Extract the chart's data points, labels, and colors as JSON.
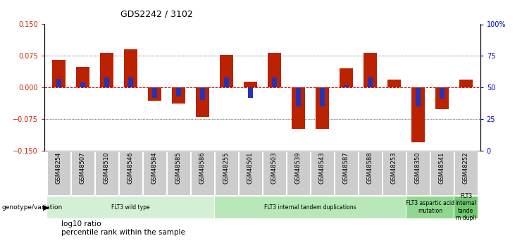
{
  "title": "GDS2242 / 3102",
  "samples": [
    "GSM48254",
    "GSM48507",
    "GSM48510",
    "GSM48546",
    "GSM48584",
    "GSM48585",
    "GSM48586",
    "GSM48255",
    "GSM48501",
    "GSM48503",
    "GSM48539",
    "GSM48543",
    "GSM48587",
    "GSM48588",
    "GSM48253",
    "GSM48350",
    "GSM48541",
    "GSM48252"
  ],
  "log10_ratio": [
    0.065,
    0.048,
    0.082,
    0.09,
    -0.032,
    -0.038,
    -0.07,
    0.078,
    0.014,
    0.082,
    -0.098,
    -0.098,
    0.045,
    0.082,
    0.018,
    -0.13,
    -0.052,
    0.018
  ],
  "percentile_rank": [
    57,
    54,
    58,
    58,
    42,
    43,
    40,
    58,
    42,
    58,
    35,
    35,
    52,
    58,
    50,
    35,
    41,
    50
  ],
  "groups": [
    {
      "label": "FLT3 wild type",
      "start": 0,
      "end": 7,
      "color": "#d4f0d4"
    },
    {
      "label": "FLT3 internal tandem duplications",
      "start": 7,
      "end": 15,
      "color": "#b8e8b8"
    },
    {
      "label": "FLT3 aspartic acid\nmutation",
      "start": 15,
      "end": 17,
      "color": "#90d890"
    },
    {
      "label": "FLT3\ninternal\ntande\nm dupli",
      "start": 17,
      "end": 18,
      "color": "#70c870"
    }
  ],
  "ylim": [
    -0.15,
    0.15
  ],
  "yticks_left": [
    -0.15,
    -0.075,
    0.0,
    0.075,
    0.15
  ],
  "yticks_right": [
    0,
    25,
    50,
    75,
    100
  ],
  "bar_color": "#bb2200",
  "blue_color": "#2233bb",
  "zero_line_color": "#cc0000",
  "bar_width": 0.55,
  "blue_bar_width": 0.22
}
